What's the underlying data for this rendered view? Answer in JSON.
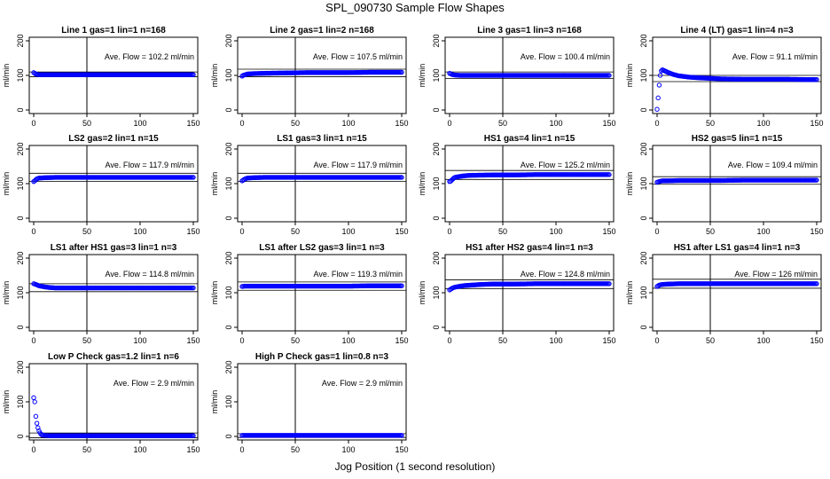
{
  "title": "SPL_090730  Sample Flow Shapes",
  "xlabel": "Jog Position (1 second resolution)",
  "colors": {
    "points": "#0000ff",
    "axis": "#000000"
  },
  "chart_data": [
    {
      "type": "scatter",
      "title": "Line 1 gas=1 lin=1 n=168",
      "ylabel": "ml/min",
      "annotation": "Ave. Flow =  102.2  ml/min",
      "xlim": [
        0,
        150
      ],
      "ylim": [
        0,
        200
      ],
      "xticks": [
        0,
        50,
        100,
        150
      ],
      "yticks": [
        0,
        100,
        200
      ],
      "vline": 50,
      "hlines": [
        110,
        96
      ],
      "points": [
        [
          0,
          108
        ],
        [
          1,
          106
        ],
        [
          2,
          104
        ],
        [
          3,
          103
        ],
        [
          5,
          102
        ],
        [
          10,
          102
        ],
        [
          20,
          102
        ],
        [
          40,
          102
        ],
        [
          60,
          102
        ],
        [
          80,
          102
        ],
        [
          100,
          102
        ],
        [
          120,
          102
        ],
        [
          140,
          102
        ],
        [
          150,
          102
        ]
      ]
    },
    {
      "type": "scatter",
      "title": "Line 2 gas=1 lin=2 n=168",
      "ylabel": "ml/min",
      "annotation": "Ave. Flow =  107.5  ml/min",
      "xlim": [
        0,
        150
      ],
      "ylim": [
        0,
        200
      ],
      "xticks": [
        0,
        50,
        100,
        150
      ],
      "yticks": [
        0,
        100,
        200
      ],
      "vline": 50,
      "hlines": [
        118,
        96
      ],
      "points": [
        [
          0,
          98
        ],
        [
          1,
          100
        ],
        [
          2,
          101
        ],
        [
          3,
          102
        ],
        [
          5,
          104
        ],
        [
          10,
          105
        ],
        [
          20,
          106
        ],
        [
          40,
          107
        ],
        [
          60,
          108
        ],
        [
          80,
          108
        ],
        [
          100,
          108
        ],
        [
          120,
          109
        ],
        [
          140,
          109
        ],
        [
          150,
          109
        ]
      ]
    },
    {
      "type": "scatter",
      "title": "Line 3 gas=1 lin=3 n=168",
      "ylabel": "ml/min",
      "annotation": "Ave. Flow =  100.4  ml/min",
      "xlim": [
        0,
        150
      ],
      "ylim": [
        0,
        200
      ],
      "xticks": [
        0,
        50,
        100,
        150
      ],
      "yticks": [
        0,
        100,
        200
      ],
      "vline": 50,
      "hlines": [
        110,
        91
      ],
      "points": [
        [
          0,
          106
        ],
        [
          1,
          105
        ],
        [
          2,
          103
        ],
        [
          3,
          102
        ],
        [
          5,
          101
        ],
        [
          10,
          100
        ],
        [
          20,
          100
        ],
        [
          40,
          100
        ],
        [
          60,
          100
        ],
        [
          80,
          100
        ],
        [
          100,
          100
        ],
        [
          120,
          100
        ],
        [
          140,
          100
        ],
        [
          150,
          100
        ]
      ]
    },
    {
      "type": "scatter",
      "title": "Line 4 (LT) gas=1 lin=4 n=3",
      "ylabel": "ml/min",
      "annotation": "Ave. Flow =  91.1  ml/min",
      "xlim": [
        0,
        150
      ],
      "ylim": [
        0,
        200
      ],
      "xticks": [
        0,
        50,
        100,
        150
      ],
      "yticks": [
        0,
        100,
        200
      ],
      "vline": 50,
      "hlines": [
        100,
        82
      ],
      "points": [
        [
          0,
          2
        ],
        [
          1,
          35
        ],
        [
          2,
          72
        ],
        [
          3,
          100
        ],
        [
          4,
          113
        ],
        [
          5,
          116
        ],
        [
          6,
          115
        ],
        [
          8,
          112
        ],
        [
          10,
          109
        ],
        [
          15,
          103
        ],
        [
          20,
          99
        ],
        [
          30,
          95
        ],
        [
          40,
          93
        ],
        [
          60,
          90
        ],
        [
          80,
          89
        ],
        [
          100,
          89
        ],
        [
          120,
          89
        ],
        [
          140,
          88
        ],
        [
          150,
          88
        ]
      ]
    },
    {
      "type": "scatter",
      "title": "LS2 gas=2 lin=1 n=15",
      "ylabel": "ml/min",
      "annotation": "Ave. Flow =  117.9  ml/min",
      "xlim": [
        0,
        150
      ],
      "ylim": [
        0,
        200
      ],
      "xticks": [
        0,
        50,
        100,
        150
      ],
      "yticks": [
        0,
        100,
        200
      ],
      "vline": 50,
      "hlines": [
        130,
        106
      ],
      "points": [
        [
          0,
          106
        ],
        [
          1,
          108
        ],
        [
          2,
          111
        ],
        [
          3,
          114
        ],
        [
          5,
          116
        ],
        [
          10,
          117
        ],
        [
          20,
          118
        ],
        [
          40,
          118
        ],
        [
          60,
          118
        ],
        [
          80,
          118
        ],
        [
          100,
          118
        ],
        [
          120,
          118
        ],
        [
          140,
          118
        ],
        [
          150,
          118
        ]
      ]
    },
    {
      "type": "scatter",
      "title": "LS1 gas=3 lin=1 n=15",
      "ylabel": "ml/min",
      "annotation": "Ave. Flow =  117.9  ml/min",
      "xlim": [
        0,
        150
      ],
      "ylim": [
        0,
        200
      ],
      "xticks": [
        0,
        50,
        100,
        150
      ],
      "yticks": [
        0,
        100,
        200
      ],
      "vline": 50,
      "hlines": [
        130,
        106
      ],
      "points": [
        [
          0,
          108
        ],
        [
          1,
          110
        ],
        [
          2,
          112
        ],
        [
          3,
          114
        ],
        [
          5,
          116
        ],
        [
          10,
          117
        ],
        [
          20,
          118
        ],
        [
          40,
          118
        ],
        [
          60,
          118
        ],
        [
          80,
          118
        ],
        [
          100,
          118
        ],
        [
          120,
          118
        ],
        [
          140,
          118
        ],
        [
          150,
          118
        ]
      ]
    },
    {
      "type": "scatter",
      "title": "HS1 gas=4 lin=1 n=15",
      "ylabel": "ml/min",
      "annotation": "Ave. Flow =  125.2  ml/min",
      "xlim": [
        0,
        150
      ],
      "ylim": [
        0,
        200
      ],
      "xticks": [
        0,
        50,
        100,
        150
      ],
      "yticks": [
        0,
        100,
        200
      ],
      "vline": 50,
      "hlines": [
        138,
        112
      ],
      "points": [
        [
          0,
          106
        ],
        [
          1,
          107
        ],
        [
          2,
          110
        ],
        [
          3,
          113
        ],
        [
          4,
          116
        ],
        [
          5,
          118
        ],
        [
          10,
          121
        ],
        [
          15,
          123
        ],
        [
          20,
          124
        ],
        [
          40,
          125
        ],
        [
          60,
          125
        ],
        [
          80,
          126
        ],
        [
          100,
          126
        ],
        [
          120,
          126
        ],
        [
          140,
          126
        ],
        [
          150,
          126
        ]
      ]
    },
    {
      "type": "scatter",
      "title": "HS2 gas=5 lin=1 n=15",
      "ylabel": "ml/min",
      "annotation": "Ave. Flow =  109.4  ml/min",
      "xlim": [
        0,
        150
      ],
      "ylim": [
        0,
        200
      ],
      "xticks": [
        0,
        50,
        100,
        150
      ],
      "yticks": [
        0,
        100,
        200
      ],
      "vline": 50,
      "hlines": [
        120,
        98
      ],
      "points": [
        [
          0,
          104
        ],
        [
          1,
          105
        ],
        [
          2,
          106
        ],
        [
          3,
          107
        ],
        [
          5,
          108
        ],
        [
          10,
          108
        ],
        [
          20,
          109
        ],
        [
          40,
          109
        ],
        [
          60,
          109
        ],
        [
          80,
          110
        ],
        [
          100,
          110
        ],
        [
          120,
          110
        ],
        [
          140,
          110
        ],
        [
          150,
          110
        ]
      ]
    },
    {
      "type": "scatter",
      "title": "LS1 after HS1 gas=3 lin=1 n=3",
      "ylabel": "ml/min",
      "annotation": "Ave. Flow =  114.8  ml/min",
      "xlim": [
        0,
        150
      ],
      "ylim": [
        0,
        200
      ],
      "xticks": [
        0,
        50,
        100,
        150
      ],
      "yticks": [
        0,
        100,
        200
      ],
      "vline": 50,
      "hlines": [
        126,
        103
      ],
      "points": [
        [
          0,
          126
        ],
        [
          1,
          125
        ],
        [
          2,
          124
        ],
        [
          3,
          123
        ],
        [
          5,
          120
        ],
        [
          10,
          117
        ],
        [
          15,
          115
        ],
        [
          20,
          114
        ],
        [
          40,
          114
        ],
        [
          60,
          114
        ],
        [
          80,
          114
        ],
        [
          100,
          114
        ],
        [
          120,
          114
        ],
        [
          140,
          114
        ],
        [
          150,
          114
        ]
      ]
    },
    {
      "type": "scatter",
      "title": "LS1 after LS2 gas=3 lin=1 n=3",
      "ylabel": "ml/min",
      "annotation": "Ave. Flow =  119.3  ml/min",
      "xlim": [
        0,
        150
      ],
      "ylim": [
        0,
        200
      ],
      "xticks": [
        0,
        50,
        100,
        150
      ],
      "yticks": [
        0,
        100,
        200
      ],
      "vline": 50,
      "hlines": [
        131,
        107
      ],
      "points": [
        [
          0,
          118
        ],
        [
          1,
          118
        ],
        [
          2,
          119
        ],
        [
          3,
          119
        ],
        [
          5,
          119
        ],
        [
          10,
          119
        ],
        [
          20,
          119
        ],
        [
          40,
          119
        ],
        [
          60,
          119
        ],
        [
          80,
          119
        ],
        [
          100,
          119
        ],
        [
          120,
          120
        ],
        [
          140,
          120
        ],
        [
          150,
          120
        ]
      ]
    },
    {
      "type": "scatter",
      "title": "HS1 after HS2 gas=4 lin=1 n=3",
      "ylabel": "ml/min",
      "annotation": "Ave. Flow =  124.8  ml/min",
      "xlim": [
        0,
        150
      ],
      "ylim": [
        0,
        200
      ],
      "xticks": [
        0,
        50,
        100,
        150
      ],
      "yticks": [
        0,
        100,
        200
      ],
      "vline": 50,
      "hlines": [
        137,
        112
      ],
      "points": [
        [
          0,
          108
        ],
        [
          1,
          110
        ],
        [
          2,
          112
        ],
        [
          3,
          114
        ],
        [
          5,
          116
        ],
        [
          10,
          119
        ],
        [
          15,
          121
        ],
        [
          20,
          122
        ],
        [
          30,
          124
        ],
        [
          40,
          125
        ],
        [
          60,
          125
        ],
        [
          80,
          126
        ],
        [
          100,
          126
        ],
        [
          120,
          126
        ],
        [
          140,
          126
        ],
        [
          150,
          126
        ]
      ]
    },
    {
      "type": "scatter",
      "title": "HS1 after LS1 gas=4 lin=1 n=3",
      "ylabel": "ml/min",
      "annotation": "Ave. Flow =  126  ml/min",
      "xlim": [
        0,
        150
      ],
      "ylim": [
        0,
        200
      ],
      "xticks": [
        0,
        50,
        100,
        150
      ],
      "yticks": [
        0,
        100,
        200
      ],
      "vline": 50,
      "hlines": [
        139,
        113
      ],
      "points": [
        [
          0,
          118
        ],
        [
          1,
          120
        ],
        [
          2,
          122
        ],
        [
          3,
          123
        ],
        [
          5,
          124
        ],
        [
          10,
          125
        ],
        [
          20,
          126
        ],
        [
          40,
          126
        ],
        [
          60,
          126
        ],
        [
          80,
          126
        ],
        [
          100,
          126
        ],
        [
          120,
          126
        ],
        [
          140,
          126
        ],
        [
          150,
          126
        ]
      ]
    },
    {
      "type": "scatter",
      "title": "Low P Check gas=1.2 lin=1 n=6",
      "ylabel": "ml/min",
      "annotation": "Ave. Flow =  2.9  ml/min",
      "xlim": [
        0,
        150
      ],
      "ylim": [
        0,
        200
      ],
      "xticks": [
        0,
        50,
        100,
        150
      ],
      "yticks": [
        0,
        100,
        200
      ],
      "vline": 50,
      "hlines": [
        10,
        -4
      ],
      "points": [
        [
          0,
          112
        ],
        [
          1,
          100
        ],
        [
          2,
          58
        ],
        [
          3,
          38
        ],
        [
          4,
          25
        ],
        [
          5,
          16
        ],
        [
          6,
          10
        ],
        [
          7,
          6
        ],
        [
          8,
          4
        ],
        [
          10,
          3
        ],
        [
          15,
          2
        ],
        [
          20,
          2
        ],
        [
          40,
          2
        ],
        [
          60,
          2
        ],
        [
          80,
          2
        ],
        [
          100,
          2
        ],
        [
          120,
          2
        ],
        [
          140,
          2
        ],
        [
          150,
          2
        ]
      ]
    },
    {
      "type": "scatter",
      "title": "High P Check gas=1 lin=0.8 n=3",
      "ylabel": "ml/min",
      "annotation": "Ave. Flow =  2.9  ml/min",
      "xlim": [
        0,
        150
      ],
      "ylim": [
        0,
        200
      ],
      "xticks": [
        0,
        50,
        100,
        150
      ],
      "yticks": [
        0,
        100,
        200
      ],
      "vline": 50,
      "hlines": [
        8,
        -3
      ],
      "points": [
        [
          0,
          3
        ],
        [
          1,
          3
        ],
        [
          2,
          3
        ],
        [
          5,
          3
        ],
        [
          10,
          3
        ],
        [
          20,
          3
        ],
        [
          40,
          3
        ],
        [
          60,
          3
        ],
        [
          80,
          3
        ],
        [
          100,
          3
        ],
        [
          120,
          3
        ],
        [
          140,
          3
        ],
        [
          150,
          3
        ]
      ]
    }
  ]
}
